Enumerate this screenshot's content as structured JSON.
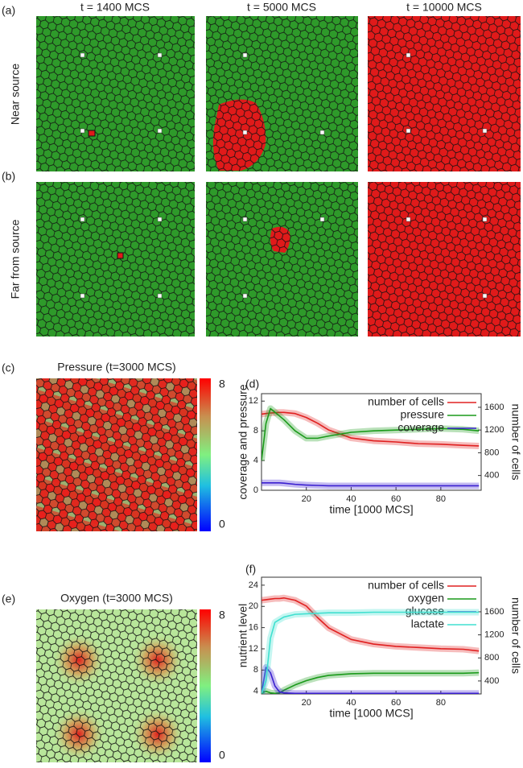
{
  "figure": {
    "panel_labels": [
      "(a)",
      "(b)",
      "(c)",
      "(d)",
      "(e)",
      "(f)"
    ],
    "column_titles": [
      "t = 1400 MCS",
      "t = 5000 MCS",
      "t = 10000 MCS"
    ],
    "row_titles": [
      "Near source",
      "Far from source"
    ],
    "maps": [
      {
        "title": "Pressure (t=3000 MCS)",
        "colorbar_ticks": [
          0,
          8
        ]
      },
      {
        "title": "Oxygen (t=3000 MCS)",
        "colorbar_ticks": [
          0,
          8
        ]
      }
    ]
  },
  "chart_data": [
    {
      "type": "line",
      "xlabel": "time [1000 MCS]",
      "ylabel": "coverage and pressure",
      "y2label": "number of cells",
      "x": [
        0,
        2,
        4,
        6,
        8,
        10,
        15,
        20,
        25,
        30,
        40,
        50,
        60,
        70,
        80,
        90,
        97
      ],
      "xlim": [
        0,
        98
      ],
      "xticks": [
        20,
        40,
        60,
        80
      ],
      "ylim": [
        0,
        13
      ],
      "yticks": [
        0,
        4,
        8,
        12
      ],
      "y2lim": [
        140,
        1840
      ],
      "y2ticks": [
        400,
        800,
        1200,
        1600
      ],
      "legend": "upper right",
      "series": [
        {
          "name": "number of cells",
          "color": "#e02020",
          "axis": "y2",
          "values": [
            1480,
            1490,
            1500,
            1505,
            1510,
            1510,
            1490,
            1420,
            1320,
            1200,
            1060,
            1010,
            990,
            960,
            950,
            930,
            920
          ]
        },
        {
          "name": "pressure",
          "color": "#1a9a1a",
          "values": [
            4,
            9,
            11,
            10.5,
            10,
            9.5,
            8,
            7,
            7,
            7.3,
            7.8,
            8,
            8.1,
            8.2,
            8.3,
            8.2,
            8
          ]
        },
        {
          "name": "coverage",
          "color": "#3a1fd0",
          "values": [
            1,
            1,
            1,
            1,
            1,
            0.95,
            0.8,
            0.7,
            0.65,
            0.6,
            0.6,
            0.6,
            0.6,
            0.6,
            0.6,
            0.6,
            0.6
          ]
        }
      ]
    },
    {
      "type": "line",
      "xlabel": "time [1000 MCS]",
      "ylabel": "nutrient level",
      "y2label": "number of cells",
      "x": [
        0,
        2,
        4,
        6,
        8,
        10,
        15,
        20,
        25,
        30,
        40,
        50,
        60,
        70,
        80,
        90,
        97
      ],
      "xlim": [
        0,
        98
      ],
      "xticks": [
        20,
        40,
        60,
        80
      ],
      "ylim": [
        3.5,
        25.5
      ],
      "yticks": [
        4,
        8,
        12,
        16,
        20,
        24
      ],
      "y2lim": [
        175,
        2200
      ],
      "y2ticks": [
        400,
        800,
        1200,
        1600
      ],
      "legend": "upper right",
      "series": [
        {
          "name": "number of cells",
          "color": "#e02020",
          "axis": "y2",
          "values": [
            1800,
            1810,
            1820,
            1830,
            1830,
            1840,
            1800,
            1700,
            1500,
            1320,
            1120,
            1040,
            1000,
            980,
            960,
            950,
            920
          ]
        },
        {
          "name": "oxygen",
          "color": "#1a9a1a",
          "values": [
            3.6,
            4.0,
            3.7,
            3.6,
            3.7,
            4.2,
            5.2,
            6.0,
            6.6,
            7.0,
            7.3,
            7.4,
            7.4,
            7.4,
            7.4,
            7.4,
            7.5
          ]
        },
        {
          "name": "glucose",
          "color": "#3a1fd0",
          "values": [
            3.6,
            8.5,
            7.5,
            5,
            3.9,
            3.7,
            3.6,
            3.6,
            3.6,
            3.6,
            3.6,
            3.6,
            3.6,
            3.6,
            3.6,
            3.6,
            3.6
          ]
        },
        {
          "name": "lactate",
          "color": "#40e0d0",
          "values": [
            3.6,
            6,
            14,
            17,
            17.5,
            18,
            18.5,
            18.6,
            18.7,
            18.8,
            18.8,
            18.9,
            18.9,
            18.9,
            18.9,
            18.9,
            18.9
          ]
        }
      ]
    }
  ]
}
